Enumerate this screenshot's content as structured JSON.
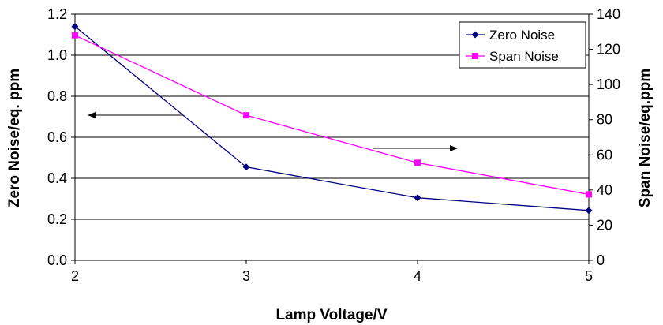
{
  "chart_data": {
    "type": "line",
    "x": [
      2,
      3,
      4,
      5
    ],
    "xlabel": "Lamp Voltage/V",
    "x_ticks": [
      "2",
      "3",
      "4",
      "5"
    ],
    "xlim": [
      2,
      5
    ],
    "y_left": {
      "label": "Zero Noise/eq. ppm",
      "lim": [
        0,
        1.2
      ],
      "ticks": [
        "0.0",
        "0.2",
        "0.4",
        "0.6",
        "0.8",
        "1.0",
        "1.2"
      ]
    },
    "y_right": {
      "label": "Span Noise/eq.ppm",
      "lim": [
        0,
        140
      ],
      "ticks": [
        "0",
        "20",
        "40",
        "60",
        "80",
        "100",
        "120",
        "140"
      ]
    },
    "series": [
      {
        "name": "Zero Noise",
        "axis": "left",
        "color": "#000080",
        "marker": "diamond",
        "values": [
          1.14,
          0.455,
          0.305,
          0.243
        ]
      },
      {
        "name": "Span Noise",
        "axis": "right",
        "color": "#ff00ff",
        "marker": "square",
        "values": [
          128,
          82.5,
          55.5,
          37.5
        ]
      }
    ],
    "grid": "horizontal",
    "legend_position": "top-right",
    "annotations": [
      {
        "type": "arrow",
        "direction": "left",
        "points_to": "left axis"
      },
      {
        "type": "arrow",
        "direction": "right",
        "points_to": "right axis"
      }
    ]
  }
}
